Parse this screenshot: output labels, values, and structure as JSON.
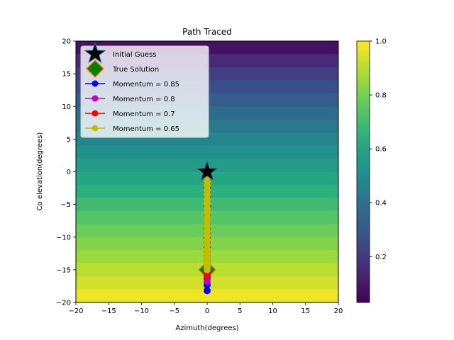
{
  "chart_data": {
    "type": "scatter",
    "title": "Path Traced",
    "xlabel": "Azimuth(degrees)",
    "ylabel": "Co elevation(degrees)",
    "xlim": [
      -20,
      20
    ],
    "ylim": [
      -20,
      20
    ],
    "xticks": [
      -20,
      -15,
      -10,
      -5,
      0,
      5,
      10,
      15,
      20
    ],
    "yticks": [
      -20,
      -15,
      -10,
      -5,
      0,
      5,
      10,
      15,
      20
    ],
    "x_tick_labels": [
      "−20",
      "−15",
      "−10",
      "−5",
      "0",
      "5",
      "10",
      "15",
      "20"
    ],
    "y_tick_labels": [
      "−20",
      "−15",
      "−10",
      "−5",
      "0",
      "5",
      "10",
      "15",
      "20"
    ],
    "background": {
      "type": "heatmap",
      "colormap": "viridis",
      "rows": 20,
      "description": "value increases from top (co-elevation 20) to bottom (co-elevation -20)"
    },
    "colorbar": {
      "ticks": [
        0.2,
        0.4,
        0.6,
        0.8,
        1.0
      ],
      "tick_labels": [
        "0.2",
        "0.4",
        "0.6",
        "0.8",
        "1.0"
      ],
      "range": [
        0.03,
        1.0
      ]
    },
    "markers": [
      {
        "name": "Initial Guess",
        "x": 0,
        "y": 0,
        "shape": "star",
        "color": "#000000",
        "edge": "#1f77b4"
      },
      {
        "name": "True Solution",
        "x": 0,
        "y": -15,
        "shape": "diamond",
        "color": "#008000",
        "edge": "#ff7f0e"
      }
    ],
    "series": [
      {
        "name": "Momentum = 0.85",
        "color": "#0000ff",
        "x": [
          0,
          0,
          0,
          0,
          0,
          0,
          0,
          0,
          0,
          0,
          0,
          0,
          0,
          0,
          0
        ],
        "y": [
          0,
          -1.2,
          -2.5,
          -4,
          -5.5,
          -7,
          -8.5,
          -10,
          -11.5,
          -13,
          -14.2,
          -15.3,
          -16.3,
          -17.3,
          -18.2
        ]
      },
      {
        "name": "Momentum = 0.8",
        "color": "#bf00bf",
        "x": [
          0,
          0,
          0,
          0,
          0,
          0,
          0,
          0,
          0,
          0,
          0,
          0,
          0,
          0
        ],
        "y": [
          0,
          -1.1,
          -2.3,
          -3.6,
          -5,
          -6.4,
          -7.8,
          -9.3,
          -10.8,
          -12.3,
          -13.7,
          -14.9,
          -15.9,
          -16.8
        ]
      },
      {
        "name": "Momentum = 0.7",
        "color": "#ff0000",
        "x": [
          0,
          0,
          0,
          0,
          0,
          0,
          0,
          0,
          0,
          0,
          0,
          0,
          0,
          0,
          0,
          0
        ],
        "y": [
          0,
          -0.9,
          -1.9,
          -3,
          -4.1,
          -5.3,
          -6.5,
          -7.7,
          -8.9,
          -10.1,
          -11.3,
          -12.5,
          -13.6,
          -14.5,
          -15.2,
          -15.8
        ]
      },
      {
        "name": "Momentum = 0.65",
        "color": "#bfbf00",
        "x": [
          0,
          0,
          0,
          0,
          0,
          0,
          0,
          0,
          0,
          0,
          0,
          0,
          0,
          0,
          0,
          0,
          0,
          0,
          0,
          0,
          0,
          0,
          0,
          0,
          0
        ],
        "y": [
          0,
          -0.4,
          -0.9,
          -1.5,
          -2.1,
          -2.8,
          -3.5,
          -4.2,
          -4.9,
          -5.6,
          -6.3,
          -7,
          -7.7,
          -8.4,
          -9.1,
          -9.8,
          -10.5,
          -11.2,
          -11.9,
          -12.5,
          -13.1,
          -13.7,
          -14.2,
          -14.6,
          -15
        ]
      }
    ],
    "legend": {
      "placement": "upper-left",
      "entries": [
        "Initial Guess",
        "True Solution",
        "Momentum = 0.85",
        "Momentum = 0.8",
        "Momentum = 0.7",
        "Momentum = 0.65"
      ]
    }
  }
}
